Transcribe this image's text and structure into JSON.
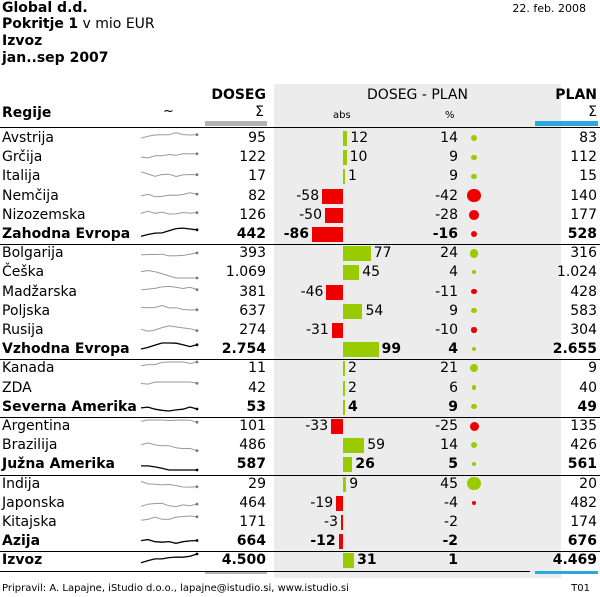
{
  "header": {
    "company": "Global d.d.",
    "cover_label": "Pokritje",
    "cover_value": "1",
    "cover_unit": "v mio EUR",
    "measure": "Izvoz",
    "period": "jan..sep 2007",
    "date": "22. feb. 2008"
  },
  "columns": {
    "regions": "Regije",
    "sparkline": "~",
    "actual": "DOSEG",
    "actual_symbol": "Σ",
    "variance": "DOSEG - PLAN",
    "abs": "abs",
    "pct": "%",
    "plan": "PLAN",
    "plan_symbol": "Σ"
  },
  "colors": {
    "positive": "#99cc00",
    "negative": "#ee0000",
    "panel": "#ececec",
    "plan_accent": "#2ba8e0",
    "actual_accent": "#b4b4b4"
  },
  "chart_data": {
    "type": "table",
    "columns": [
      "Regije",
      "DOSEG",
      "DOSEG - PLAN abs",
      "DOSEG - PLAN %",
      "PLAN"
    ],
    "rows": [
      {
        "name": "Avstrija",
        "doseg": "95",
        "abs": 12,
        "abs_label": "12",
        "pct": "14",
        "pct_value": 14,
        "plan": "83",
        "total": false
      },
      {
        "name": "Grčija",
        "doseg": "122",
        "abs": 10,
        "abs_label": "10",
        "pct": "9",
        "pct_value": 9,
        "plan": "112",
        "total": false
      },
      {
        "name": "Italija",
        "doseg": "17",
        "abs": 1,
        "abs_label": "1",
        "pct": "9",
        "pct_value": 9,
        "plan": "15",
        "total": false
      },
      {
        "name": "Nemčija",
        "doseg": "82",
        "abs": -58,
        "abs_label": "-58",
        "pct": "-42",
        "pct_value": -42,
        "plan": "140",
        "total": false
      },
      {
        "name": "Nizozemska",
        "doseg": "126",
        "abs": -50,
        "abs_label": "-50",
        "pct": "-28",
        "pct_value": -28,
        "plan": "177",
        "total": false
      },
      {
        "name": "Zahodna Evropa",
        "doseg": "442",
        "abs": -86,
        "abs_label": "-86",
        "pct": "-16",
        "pct_value": -16,
        "plan": "528",
        "total": true
      },
      {
        "name": "Bolgarija",
        "doseg": "393",
        "abs": 77,
        "abs_label": "77",
        "pct": "24",
        "pct_value": 24,
        "plan": "316",
        "total": false
      },
      {
        "name": "Češka",
        "doseg": "1.069",
        "abs": 45,
        "abs_label": "45",
        "pct": "4",
        "pct_value": 4,
        "plan": "1.024",
        "total": false
      },
      {
        "name": "Madžarska",
        "doseg": "381",
        "abs": -46,
        "abs_label": "-46",
        "pct": "-11",
        "pct_value": -11,
        "plan": "428",
        "total": false
      },
      {
        "name": "Poljska",
        "doseg": "637",
        "abs": 54,
        "abs_label": "54",
        "pct": "9",
        "pct_value": 9,
        "plan": "583",
        "total": false
      },
      {
        "name": "Rusija",
        "doseg": "274",
        "abs": -31,
        "abs_label": "-31",
        "pct": "-10",
        "pct_value": -10,
        "plan": "304",
        "total": false
      },
      {
        "name": "Vzhodna Evropa",
        "doseg": "2.754",
        "abs": 99,
        "abs_label": "99",
        "pct": "4",
        "pct_value": 4,
        "plan": "2.655",
        "total": true
      },
      {
        "name": "Kanada",
        "doseg": "11",
        "abs": 2,
        "abs_label": "2",
        "pct": "21",
        "pct_value": 21,
        "plan": "9",
        "total": false
      },
      {
        "name": "ZDA",
        "doseg": "42",
        "abs": 2,
        "abs_label": "2",
        "pct": "6",
        "pct_value": 6,
        "plan": "40",
        "total": false
      },
      {
        "name": "Severna Amerika",
        "doseg": "53",
        "abs": 4,
        "abs_label": "4",
        "pct": "9",
        "pct_value": 9,
        "plan": "49",
        "total": true
      },
      {
        "name": "Argentina",
        "doseg": "101",
        "abs": -33,
        "abs_label": "-33",
        "pct": "-25",
        "pct_value": -25,
        "plan": "135",
        "total": false
      },
      {
        "name": "Brazilija",
        "doseg": "486",
        "abs": 59,
        "abs_label": "59",
        "pct": "14",
        "pct_value": 14,
        "plan": "426",
        "total": false
      },
      {
        "name": "Južna Amerika",
        "doseg": "587",
        "abs": 26,
        "abs_label": "26",
        "pct": "5",
        "pct_value": 5,
        "plan": "561",
        "total": true
      },
      {
        "name": "Indija",
        "doseg": "29",
        "abs": 9,
        "abs_label": "9",
        "pct": "45",
        "pct_value": 45,
        "plan": "20",
        "total": false
      },
      {
        "name": "Japonska",
        "doseg": "464",
        "abs": -19,
        "abs_label": "-19",
        "pct": "-4",
        "pct_value": -4,
        "plan": "482",
        "total": false
      },
      {
        "name": "Kitajska",
        "doseg": "171",
        "abs": -3,
        "abs_label": "-3",
        "pct": "-2",
        "pct_value": -2,
        "plan": "174",
        "total": false
      },
      {
        "name": "Azija",
        "doseg": "664",
        "abs": -12,
        "abs_label": "-12",
        "pct": "-2",
        "pct_value": -2,
        "plan": "676",
        "total": true
      },
      {
        "name": "Izvoz",
        "doseg": "4.500",
        "abs": 31,
        "abs_label": "31",
        "pct": "1",
        "pct_value": 1,
        "plan": "4.469",
        "total": true
      }
    ]
  },
  "footer": {
    "note": "Pripravil: A. Lapajne, iStudio d.o.o., lapajne@istudio.si, www.istudio.si",
    "code": "T01"
  }
}
